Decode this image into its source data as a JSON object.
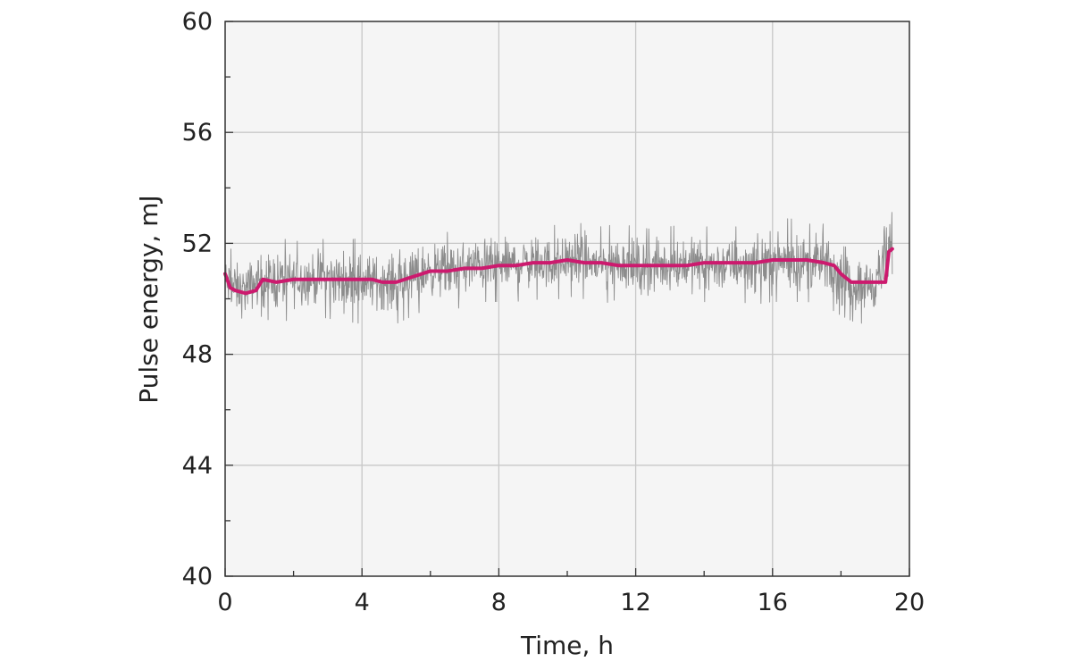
{
  "chart_data": {
    "type": "line",
    "xlabel": "Time, h",
    "ylabel": "Pulse energy, mJ",
    "xlim": [
      0,
      20
    ],
    "ylim": [
      40,
      60
    ],
    "x_ticks": [
      0,
      4,
      8,
      12,
      16,
      20
    ],
    "y_ticks": [
      40,
      44,
      48,
      52,
      56,
      60
    ],
    "x_tick_labels": [
      "0",
      "4",
      "8",
      "12",
      "16",
      "20"
    ],
    "y_tick_labels": [
      "40",
      "44",
      "48",
      "52",
      "56",
      "60"
    ],
    "grid": true,
    "background_color": "#f5f5f5",
    "series": [
      {
        "role": "raw",
        "color": "#8c8c8c",
        "x": [
          0,
          0.5,
          1,
          1.5,
          2,
          2.5,
          3,
          3.5,
          4,
          4.5,
          5,
          5.5,
          6,
          6.5,
          7,
          7.5,
          8,
          8.5,
          9,
          9.5,
          10,
          10.5,
          11,
          11.5,
          12,
          12.5,
          13,
          13.5,
          14,
          14.5,
          15,
          15.5,
          16,
          16.5,
          17,
          17.5,
          18,
          18.5,
          19,
          19.3,
          19.5
        ],
        "upper": [
          51.9,
          51.6,
          52.0,
          52.2,
          52.1,
          52.0,
          52.2,
          52.1,
          52.2,
          52.0,
          52.0,
          52.3,
          52.4,
          52.4,
          52.5,
          52.6,
          52.5,
          52.6,
          52.7,
          52.6,
          52.8,
          52.7,
          52.6,
          52.7,
          52.6,
          52.5,
          52.6,
          52.7,
          52.6,
          52.6,
          52.6,
          52.7,
          52.8,
          52.9,
          52.7,
          52.7,
          51.9,
          51.8,
          51.9,
          53.4,
          53.1
        ],
        "lower": [
          49.3,
          48.9,
          49.4,
          49.1,
          49.3,
          49.4,
          49.3,
          49.2,
          49.1,
          49.2,
          49.1,
          49.4,
          49.7,
          49.6,
          49.7,
          49.9,
          49.9,
          49.9,
          50.0,
          49.9,
          50.1,
          50.0,
          49.8,
          50.0,
          49.7,
          49.8,
          49.8,
          49.9,
          49.9,
          49.8,
          49.9,
          49.8,
          49.9,
          49.9,
          49.9,
          49.8,
          49.4,
          49.1,
          49.2,
          49.6,
          50.2
        ]
      },
      {
        "role": "average",
        "color": "#cc1a6e",
        "x": [
          0,
          0.15,
          0.3,
          0.6,
          0.9,
          1.1,
          1.5,
          2,
          2.5,
          3,
          3.5,
          4,
          4.3,
          4.6,
          5,
          5.5,
          6,
          6.5,
          7,
          7.5,
          8,
          8.5,
          9,
          9.5,
          10,
          10.5,
          11,
          11.5,
          12,
          12.5,
          13,
          13.5,
          14,
          14.5,
          15,
          15.5,
          16,
          16.5,
          17,
          17.5,
          17.8,
          18,
          18.3,
          18.6,
          19,
          19.3,
          19.4,
          19.5
        ],
        "y": [
          50.9,
          50.4,
          50.3,
          50.2,
          50.3,
          50.7,
          50.6,
          50.7,
          50.7,
          50.7,
          50.7,
          50.7,
          50.7,
          50.6,
          50.6,
          50.8,
          51.0,
          51.0,
          51.1,
          51.1,
          51.2,
          51.2,
          51.3,
          51.3,
          51.4,
          51.3,
          51.3,
          51.2,
          51.2,
          51.2,
          51.2,
          51.2,
          51.3,
          51.3,
          51.3,
          51.3,
          51.4,
          51.4,
          51.4,
          51.3,
          51.2,
          50.9,
          50.6,
          50.6,
          50.6,
          50.6,
          51.7,
          51.8
        ]
      }
    ]
  }
}
